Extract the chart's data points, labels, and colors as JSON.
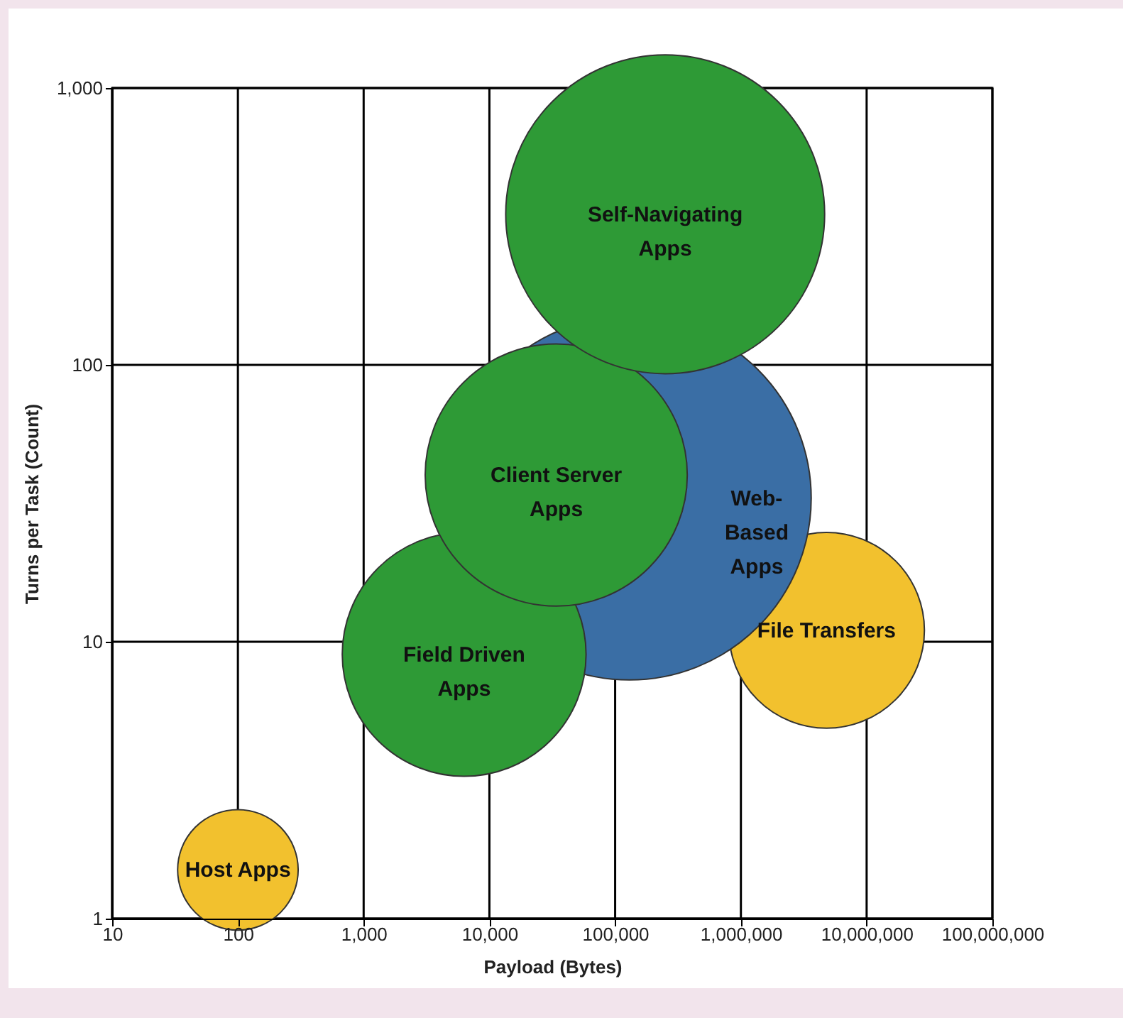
{
  "chart_data": {
    "type": "bubble",
    "xlabel": "Payload (Bytes)",
    "ylabel": "Turns per Task (Count)",
    "log": "xy",
    "grid": true,
    "xlim": [
      10,
      100000000
    ],
    "ylim": [
      1,
      1000
    ],
    "xticks": [
      10,
      100,
      {
        "value": 1000,
        "label": "1,000"
      },
      {
        "value": 10000,
        "label": "10,000"
      },
      {
        "value": 100000,
        "label": "100,000"
      },
      {
        "value": 1000000,
        "label": "1,000,000"
      },
      {
        "value": 10000000,
        "label": "10,000,000"
      },
      {
        "value": 100000000,
        "label": "100,000,000"
      }
    ],
    "yticks": [
      1,
      10,
      100,
      {
        "value": 1000,
        "label": "1,000"
      }
    ],
    "series": [
      {
        "name": "Host Apps",
        "color": "#f2c12e",
        "x": [
          100
        ],
        "values": [
          1.5
        ],
        "sizes": [
          0.11
        ]
      },
      {
        "name": "File Transfers",
        "color": "#f2c12e",
        "x": [
          4800000
        ],
        "values": [
          11
        ],
        "sizes": [
          0.29
        ]
      },
      {
        "name": "Web-\nBased\nApps",
        "color": "#3a6ea5",
        "x": [
          130000
        ],
        "values": [
          33
        ],
        "sizes": [
          1
        ]
      },
      {
        "name": "Field Driven\nApps",
        "color": "#2e9a36",
        "x": [
          6300
        ],
        "values": [
          9
        ],
        "sizes": [
          0.45
        ]
      },
      {
        "name": "Client Server\nApps",
        "color": "#2e9a36",
        "x": [
          34000
        ],
        "values": [
          40
        ],
        "sizes": [
          0.52
        ]
      },
      {
        "name": "Self-Navigating\nApps",
        "color": "#2e9a36",
        "x": [
          250000
        ],
        "values": [
          350
        ],
        "sizes": [
          0.77
        ]
      }
    ]
  }
}
